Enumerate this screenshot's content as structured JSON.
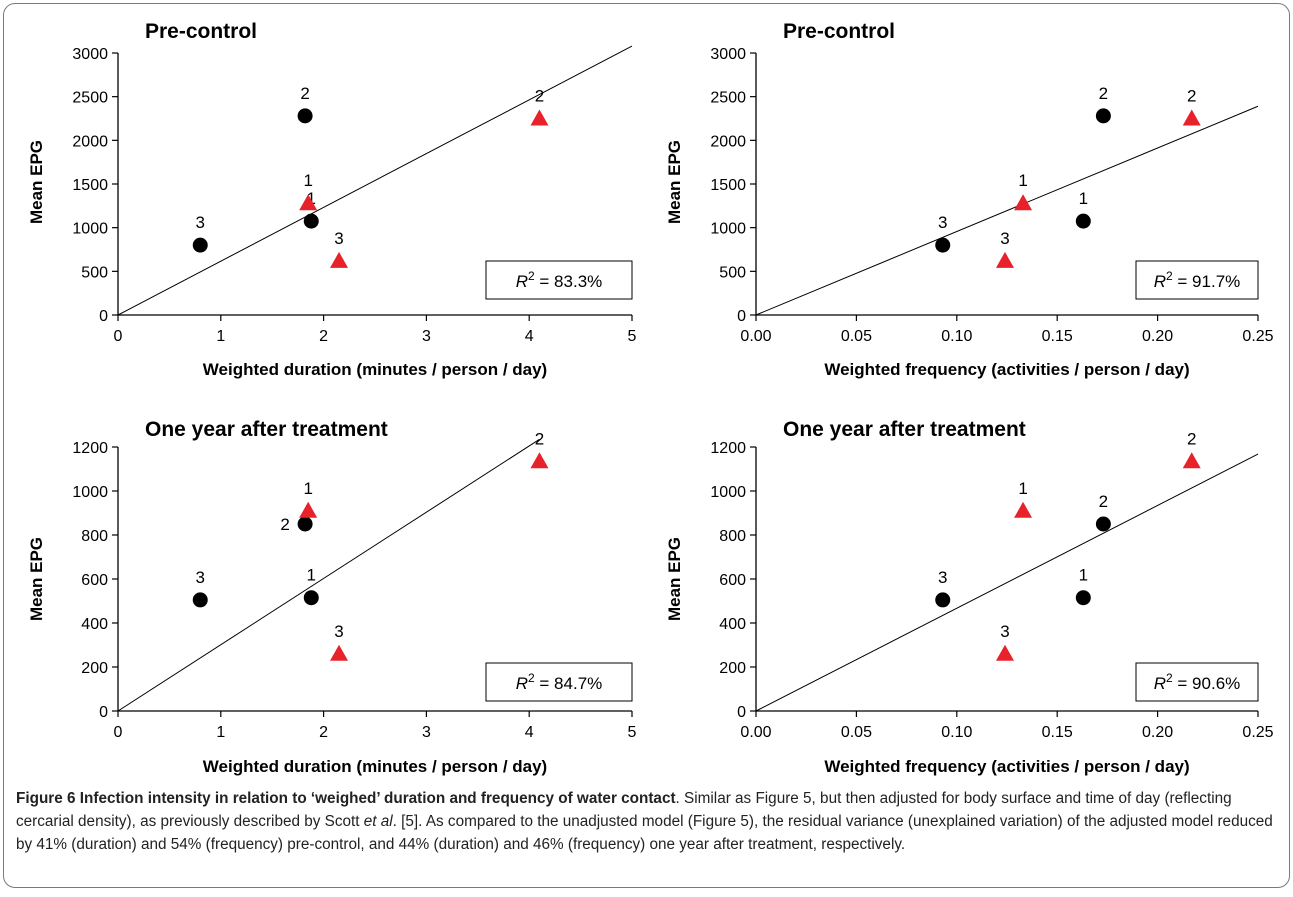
{
  "chart_data": [
    {
      "type": "scatter",
      "title": "Pre-control",
      "xlabel": "Weighted duration (minutes / person / day)",
      "ylabel": "Mean EPG",
      "xlim": [
        0,
        5
      ],
      "ylim": [
        0,
        3000
      ],
      "xticks": [
        "0",
        "1",
        "2",
        "3",
        "4",
        "5"
      ],
      "yticks": [
        "0",
        "500",
        "1000",
        "1500",
        "2000",
        "2500",
        "3000"
      ],
      "r2_label": "R",
      "r2_sup": "2",
      "r2_value": "= 83.3%",
      "series": [
        {
          "marker": "circle",
          "color": "#000000",
          "points": [
            {
              "x": 0.8,
              "y": 800,
              "label": "3"
            },
            {
              "x": 1.82,
              "y": 2280,
              "label": "2"
            },
            {
              "x": 1.88,
              "y": 1075,
              "label": "1"
            }
          ]
        },
        {
          "marker": "triangle",
          "color": "#e8222a",
          "points": [
            {
              "x": 1.85,
              "y": 1280,
              "label": "1"
            },
            {
              "x": 2.15,
              "y": 620,
              "label": "3"
            },
            {
              "x": 4.1,
              "y": 2250,
              "label": "2"
            }
          ]
        }
      ],
      "fit_line": {
        "x": [
          0,
          5
        ],
        "y": [
          0,
          3080
        ]
      }
    },
    {
      "type": "scatter",
      "title": "Pre-control",
      "xlabel": "Weighted frequency (activities / person / day)",
      "ylabel": "Mean EPG",
      "xlim": [
        0,
        0.25
      ],
      "ylim": [
        0,
        3000
      ],
      "xticks": [
        "0.00",
        "0.05",
        "0.10",
        "0.15",
        "0.20",
        "0.25"
      ],
      "yticks": [
        "0",
        "500",
        "1000",
        "1500",
        "2000",
        "2500",
        "3000"
      ],
      "r2_label": "R",
      "r2_sup": "2",
      "r2_value": "= 91.7%",
      "series": [
        {
          "marker": "circle",
          "color": "#000000",
          "points": [
            {
              "x": 0.093,
              "y": 800,
              "label": "3"
            },
            {
              "x": 0.163,
              "y": 1075,
              "label": "1"
            },
            {
              "x": 0.173,
              "y": 2280,
              "label": "2"
            }
          ]
        },
        {
          "marker": "triangle",
          "color": "#e8222a",
          "points": [
            {
              "x": 0.124,
              "y": 620,
              "label": "3"
            },
            {
              "x": 0.133,
              "y": 1280,
              "label": "1"
            },
            {
              "x": 0.217,
              "y": 2250,
              "label": "2"
            }
          ]
        }
      ],
      "fit_line": {
        "x": [
          0,
          0.25
        ],
        "y": [
          0,
          2390
        ]
      }
    },
    {
      "type": "scatter",
      "title": "One year after treatment",
      "xlabel": "Weighted duration (minutes / person / day)",
      "ylabel": "Mean EPG",
      "xlim": [
        0,
        5
      ],
      "ylim": [
        0,
        1200
      ],
      "xticks": [
        "0",
        "1",
        "2",
        "3",
        "4",
        "5"
      ],
      "yticks": [
        "0",
        "200",
        "400",
        "600",
        "800",
        "1000",
        "1200"
      ],
      "r2_label": "R",
      "r2_sup": "2",
      "r2_value": "= 84.7%",
      "series": [
        {
          "marker": "circle",
          "color": "#000000",
          "points": [
            {
              "x": 0.8,
              "y": 505,
              "label": "3"
            },
            {
              "x": 1.82,
              "y": 850,
              "label": "2",
              "label_side": "left"
            },
            {
              "x": 1.88,
              "y": 515,
              "label": "1"
            }
          ]
        },
        {
          "marker": "triangle",
          "color": "#e8222a",
          "points": [
            {
              "x": 1.85,
              "y": 910,
              "label": "1"
            },
            {
              "x": 2.15,
              "y": 260,
              "label": "3"
            },
            {
              "x": 4.1,
              "y": 1135,
              "label": "2"
            }
          ]
        }
      ],
      "fit_line": {
        "x": [
          0,
          4.1
        ],
        "y": [
          0,
          1235
        ]
      }
    },
    {
      "type": "scatter",
      "title": "One year after treatment",
      "xlabel": "Weighted frequency (activities / person / day)",
      "ylabel": "Mean EPG",
      "xlim": [
        0,
        0.25
      ],
      "ylim": [
        0,
        1200
      ],
      "xticks": [
        "0.00",
        "0.05",
        "0.10",
        "0.15",
        "0.20",
        "0.25"
      ],
      "yticks": [
        "0",
        "200",
        "400",
        "600",
        "800",
        "1000",
        "1200"
      ],
      "r2_label": "R",
      "r2_sup": "2",
      "r2_value": "= 90.6%",
      "series": [
        {
          "marker": "circle",
          "color": "#000000",
          "points": [
            {
              "x": 0.093,
              "y": 505,
              "label": "3"
            },
            {
              "x": 0.163,
              "y": 515,
              "label": "1"
            },
            {
              "x": 0.173,
              "y": 850,
              "label": "2"
            }
          ]
        },
        {
          "marker": "triangle",
          "color": "#e8222a",
          "points": [
            {
              "x": 0.124,
              "y": 260,
              "label": "3"
            },
            {
              "x": 0.133,
              "y": 910,
              "label": "1"
            },
            {
              "x": 0.217,
              "y": 1135,
              "label": "2"
            }
          ]
        }
      ],
      "fit_line": {
        "x": [
          0,
          0.25
        ],
        "y": [
          0,
          1168
        ]
      }
    }
  ],
  "caption": {
    "figure_label": "Figure 6",
    "title": "Infection intensity in relation to ‘weighed’ duration and frequency of water contact",
    "text_1": ". Similar as Figure 5, but then adjusted for body surface and time of day (reflecting cercarial density), as previously described by Scott ",
    "et_al": "et al",
    "text_2": ". [5]. As compared to the unadjusted model (Figure 5), the residual variance (unexplained variation) of the adjusted model reduced by 41% (duration) and 54% (frequency) pre-control, and 44% (duration) and 46% (frequency) one year after treatment, respectively."
  }
}
